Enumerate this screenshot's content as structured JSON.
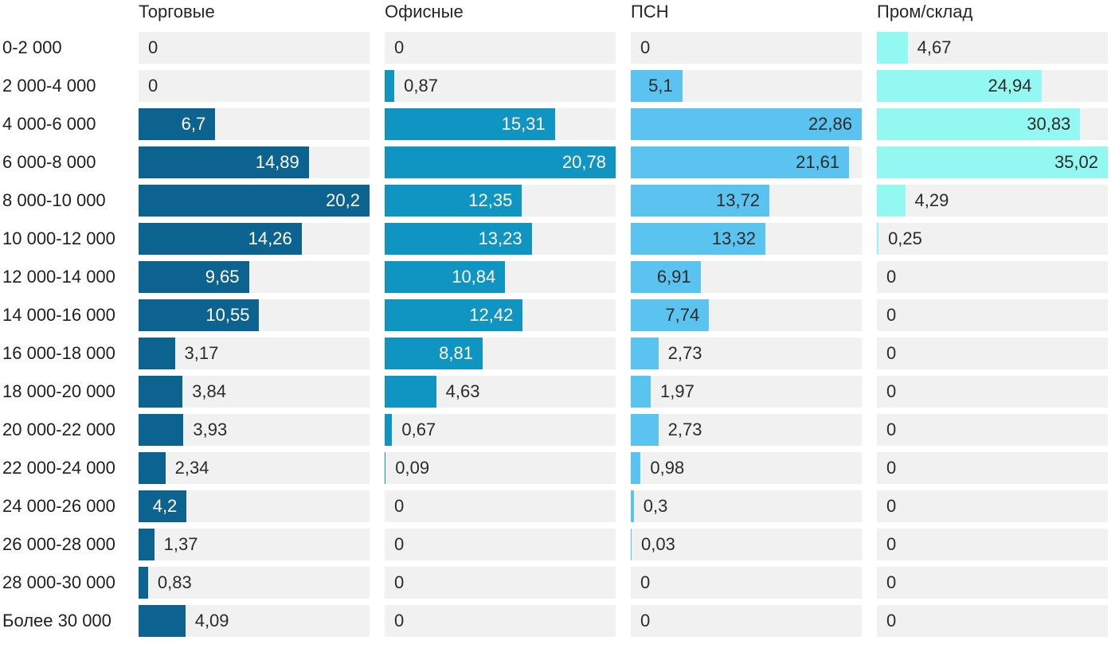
{
  "chart_data": {
    "type": "bar",
    "orientation": "horizontal",
    "decimal_separator": ",",
    "grid": false,
    "legend_position": "column-headers-top",
    "track_color": "#f1f1f1",
    "label_color": "#262626",
    "categories": [
      "0-2 000",
      "2 000-4 000",
      "4 000-6 000",
      "6 000-8 000",
      "8 000-10 000",
      "10 000-12 000",
      "12 000-14 000",
      "14 000-16 000",
      "16 000-18 000",
      "18 000-20 000",
      "20 000-22 000",
      "22 000-24 000",
      "24 000-26 000",
      "26 000-28 000",
      "28 000-30 000",
      "Более 30 000"
    ],
    "series": [
      {
        "name": "Торговые",
        "color": "#0d6390",
        "inside_label_color": "#ffffff",
        "values": [
          0,
          0,
          6.7,
          14.89,
          20.2,
          14.26,
          9.65,
          10.55,
          3.17,
          3.84,
          3.93,
          2.34,
          4.2,
          1.37,
          0.83,
          4.09
        ]
      },
      {
        "name": "Офисные",
        "color": "#1095c2",
        "inside_label_color": "#ffffff",
        "values": [
          0,
          0.87,
          15.31,
          20.78,
          12.35,
          13.23,
          10.84,
          12.42,
          8.81,
          4.63,
          0.67,
          0.09,
          0,
          0,
          0,
          0
        ]
      },
      {
        "name": "ПСН",
        "color": "#5bc3ef",
        "inside_label_color": "#2b2b2b",
        "values": [
          0,
          5.1,
          22.86,
          21.61,
          13.72,
          13.32,
          6.91,
          7.74,
          2.73,
          1.97,
          2.73,
          0.98,
          0.3,
          0.03,
          0,
          0
        ]
      },
      {
        "name": "Пром/склад",
        "color": "#94f8f2",
        "inside_label_color": "#2b2b2b",
        "values": [
          4.67,
          24.94,
          30.83,
          35.02,
          4.29,
          0.25,
          0,
          0,
          0,
          0,
          0,
          0,
          0,
          0,
          0,
          0
        ]
      }
    ],
    "column_axis_max": [
      20.2,
      20.78,
      22.86,
      35.02
    ]
  }
}
